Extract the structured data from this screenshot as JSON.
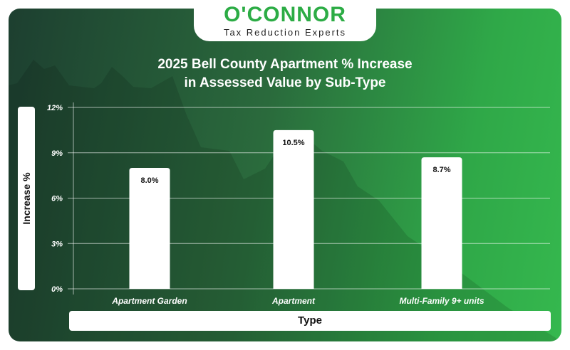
{
  "logo": {
    "brand": "O'CONNOR",
    "tagline": "Tax Reduction Experts"
  },
  "colors": {
    "bar": "#ffffff",
    "background_dark": "#1d3f30",
    "background_bright": "#35b84e",
    "brand_green": "#2cac45"
  },
  "chart_data": {
    "type": "bar",
    "title": "2025 Bell County Apartment % Increase in Assessed Value by Sub-Type",
    "title_lines": [
      "2025 Bell County Apartment % Increase",
      "in Assessed Value by Sub-Type"
    ],
    "xlabel": "Type",
    "ylabel": "Increase %",
    "categories": [
      "Apartment Garden",
      "Apartment",
      "Multi-Family 9+ units"
    ],
    "values": [
      8.0,
      10.5,
      8.7
    ],
    "data_labels": [
      "8.0%",
      "10.5%",
      "8.7%"
    ],
    "ylim": [
      0,
      12
    ],
    "yticks": [
      0,
      3,
      6,
      9,
      12
    ],
    "ytick_labels": [
      "0%",
      "3%",
      "6%",
      "9%",
      "12%"
    ],
    "grid": true
  }
}
